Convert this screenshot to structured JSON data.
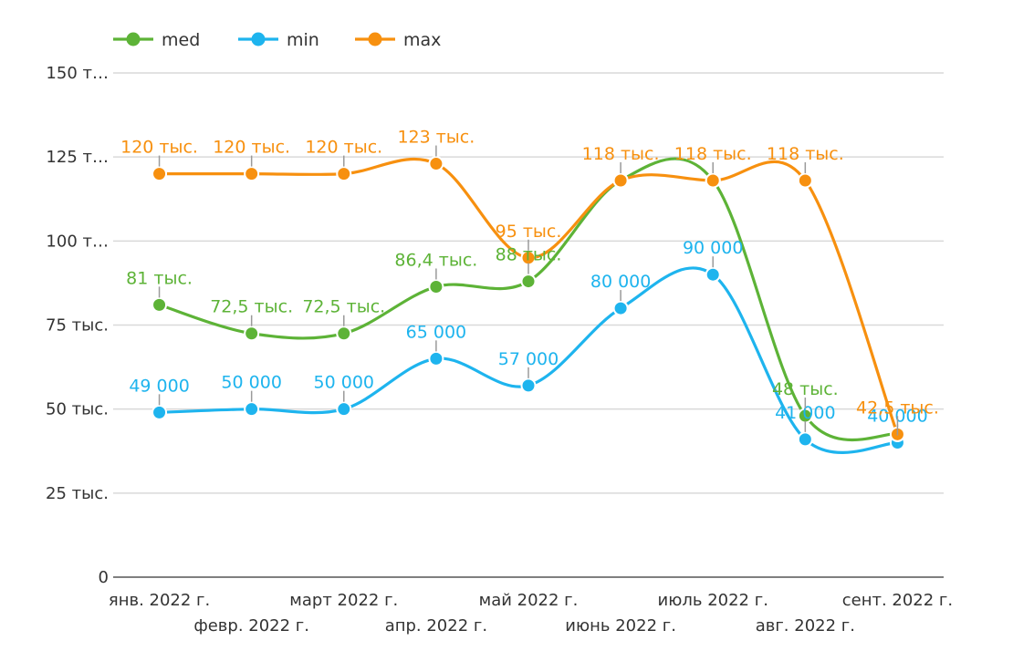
{
  "chart_data": {
    "type": "line",
    "title": "",
    "xlabel": "",
    "ylabel": "",
    "ylim": [
      0,
      150000
    ],
    "grid": true,
    "legend_position": "top-left",
    "y_ticks": [
      0,
      25000,
      50000,
      75000,
      100000,
      125000,
      150000
    ],
    "y_tick_labels": [
      "0",
      "25 тыс.",
      "50 тыс.",
      "75 тыс.",
      "100 т…",
      "125 т…",
      "150 т…"
    ],
    "categories": [
      "янв. 2022 г.",
      "февр. 2022 г.",
      "март 2022 г.",
      "апр. 2022 г.",
      "май 2022 г.",
      "июнь 2022 г.",
      "июль 2022 г.",
      "авг. 2022 г.",
      "сент. 2022 г."
    ],
    "series": [
      {
        "name": "med",
        "color": "#5db337",
        "values": [
          81000,
          72500,
          72500,
          86400,
          88000,
          118000,
          118000,
          48000,
          42500
        ],
        "labels": [
          "81 тыс.",
          "72,5 тыс.",
          "72,5 тыс.",
          "86,4 тыс.",
          "88 тыс.",
          "",
          "",
          "48 тыс.",
          ""
        ]
      },
      {
        "name": "min",
        "color": "#1eb4ee",
        "values": [
          49000,
          50000,
          50000,
          65000,
          57000,
          80000,
          90000,
          41000,
          40000
        ],
        "labels": [
          "49 000",
          "50 000",
          "50 000",
          "65 000",
          "57 000",
          "80 000",
          "90 000",
          "41 000",
          "40 000"
        ]
      },
      {
        "name": "max",
        "color": "#f7900f",
        "values": [
          120000,
          120000,
          120000,
          123000,
          95000,
          118000,
          118000,
          118000,
          42500
        ],
        "labels": [
          "120 тыс.",
          "120 тыс.",
          "120 тыс.",
          "123 тыс.",
          "95 тыс.",
          "118 тыс.",
          "118 тыс.",
          "118 тыс.",
          "42,5 тыс."
        ]
      }
    ]
  }
}
